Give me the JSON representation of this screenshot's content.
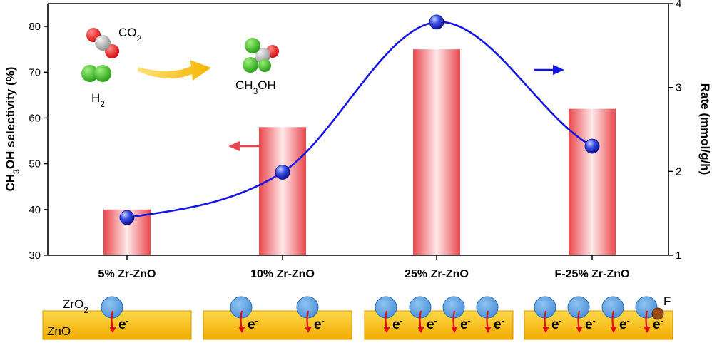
{
  "chart_data": {
    "type": "bar",
    "categories": [
      "5% Zr-ZnO",
      "10% Zr-ZnO",
      "25% Zr-ZnO",
      "F-25% Zr-ZnO"
    ],
    "series": [
      {
        "values": [
          40,
          58,
          75,
          62
        ],
        "axis": "left",
        "kind": "bar",
        "color": "#e8474c"
      },
      {
        "values": [
          1.45,
          1.99,
          3.78,
          2.3
        ],
        "axis": "right",
        "kind": "line",
        "color": "#1515e6"
      }
    ],
    "ylabel_left": "CH3OH selectivity (%)",
    "ylabel_right": "Rate (mmol/g/h)",
    "ylim_left": [
      30,
      85
    ],
    "yticks_left": [
      30,
      40,
      50,
      60,
      70,
      80
    ],
    "ylim_right": [
      1,
      4
    ],
    "yticks_right": [
      1,
      2,
      3,
      4
    ],
    "grid": false
  },
  "reaction": {
    "co2": "CO2",
    "h2": "H2",
    "ch3oh": "CH3OH"
  },
  "schematic": {
    "zro2": "ZrO2",
    "zno": "ZnO",
    "f": "F",
    "electron": "e-",
    "particle_counts": [
      1,
      2,
      4,
      4
    ]
  }
}
